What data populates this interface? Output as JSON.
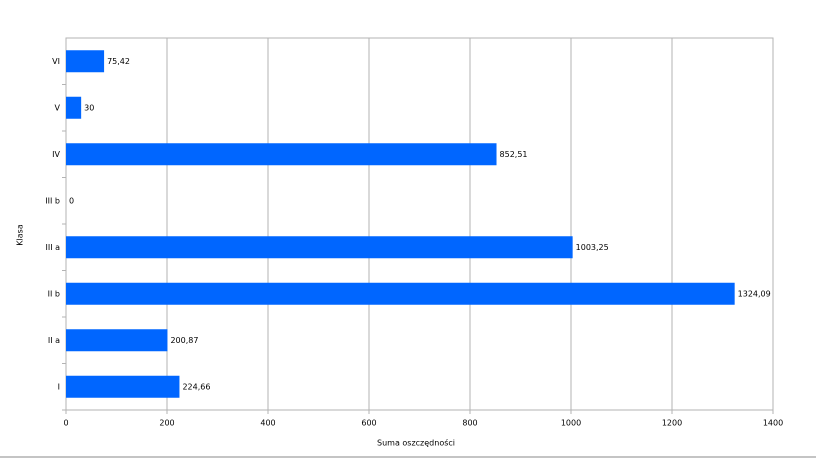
{
  "chart_data": {
    "type": "bar",
    "orientation": "horizontal",
    "x_label": "Suma oszczędności",
    "y_label": "Klasa",
    "categories": [
      "I",
      "II a",
      "II b",
      "III a",
      "III b",
      "IV",
      "V",
      "VI"
    ],
    "values": [
      224.66,
      200.87,
      1324.09,
      1003.25,
      0,
      852.51,
      30,
      75.42
    ],
    "value_labels": [
      "224,66",
      "200,87",
      "1324,09",
      "1003,25",
      "0",
      "852,51",
      "30",
      "75,42"
    ],
    "color": "#0066ff",
    "xlim": [
      0,
      1400
    ],
    "xticks": [
      0,
      200,
      400,
      600,
      800,
      1000,
      1200,
      1400
    ],
    "grid": true
  }
}
